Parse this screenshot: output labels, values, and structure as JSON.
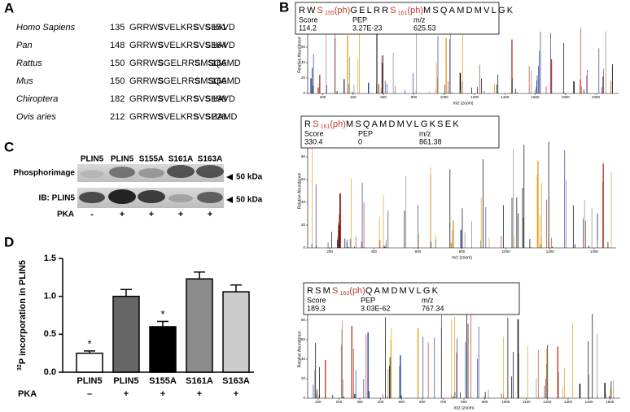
{
  "panel_a": {
    "label": "A",
    "rows": [
      {
        "species": "Homo Sapiens",
        "start": 135,
        "sequence": [
          "GRRW",
          "S",
          "VELKR",
          "S",
          "V",
          "S",
          "HAVD"
        ],
        "end": 151
      },
      {
        "species": "Pan",
        "start": 148,
        "sequence": [
          "GRRW",
          "S",
          "VELKR",
          "S",
          "V",
          "S",
          "HAVD"
        ],
        "end": 164
      },
      {
        "species": "Rattus",
        "start": 150,
        "sequence": [
          "GRRW",
          "S",
          "GELRR",
          "S",
          "M",
          "S",
          "QAMD"
        ],
        "end": 166
      },
      {
        "species": "Mus",
        "start": 150,
        "sequence": [
          "GRRW",
          "S",
          "GELRR",
          "S",
          "M",
          "S",
          "QAMD"
        ],
        "end": 166
      },
      {
        "species": "Chiroptera",
        "start": 182,
        "sequence": [
          "GRRW",
          "S",
          "VELKR",
          "S",
          "V",
          "S",
          "HAVD"
        ],
        "end": 198
      },
      {
        "species": "Ovis aries",
        "start": 212,
        "sequence": [
          "GRRW",
          "S",
          "VELKR",
          "S",
          "V",
          "S",
          "HAMD"
        ],
        "end": 228
      }
    ]
  },
  "panel_b": {
    "label": "B",
    "y_label": "Relative Abundance",
    "x_label": "m/z (zoom)",
    "score_label": "Score",
    "pep_label": "PEP",
    "mz_label": "m/z",
    "spectra": [
      {
        "peptide": [
          {
            "text": "RW"
          },
          {
            "text": "S",
            "sub": "155",
            "mod": "(ph)"
          },
          {
            "text": "GELRR"
          },
          {
            "text": "S",
            "sub": "161",
            "mod": "(ph)"
          },
          {
            "text": "MSQAMDMVLGK"
          }
        ],
        "score": 114.2,
        "pep": "3.27E-23",
        "mz": 625.53,
        "xlim": [
          100,
          2150
        ],
        "xticks": [
          200,
          400,
          600,
          800,
          1000,
          1200,
          1400,
          1600,
          1800,
          2000
        ],
        "ylim": [
          0,
          100
        ],
        "yticks": [
          0,
          20,
          40,
          60,
          80
        ]
      },
      {
        "peptide": [
          {
            "text": "R"
          },
          {
            "text": "S",
            "sub": "161",
            "mod": "(ph)"
          },
          {
            "text": "MSQAMDMVLGKSEK"
          }
        ],
        "score": 330.4,
        "pep": "0",
        "mz": 861.38,
        "xlim": [
          100,
          1500
        ],
        "xticks": [
          200,
          400,
          600,
          800,
          1000,
          1200,
          1400
        ],
        "ylim": [
          0,
          100
        ],
        "yticks": [
          0,
          20,
          40,
          60,
          80
        ]
      },
      {
        "peptide": [
          {
            "text": "RSM"
          },
          {
            "text": "S",
            "sub": "163",
            "mod": "(ph)"
          },
          {
            "text": "QAMDMVLGK"
          }
        ],
        "score": 189.3,
        "pep": "3.03E-62",
        "mz": 767.34,
        "xlim": [
          50,
          1550
        ],
        "xticks": [
          100,
          200,
          300,
          400,
          500,
          600,
          700,
          800,
          900,
          1000,
          1100,
          1200,
          1300,
          1400,
          1500
        ],
        "ylim": [
          0,
          100
        ],
        "yticks": [
          0,
          20,
          40,
          60,
          80
        ]
      }
    ]
  },
  "panel_c": {
    "label": "C",
    "lanes": [
      "PLIN5",
      "PLIN5",
      "S155A",
      "S161A",
      "S163A"
    ],
    "rows": [
      "Phosphorimage",
      "IB: PLIN5"
    ],
    "marker": "50 kDa",
    "pka_label": "PKA",
    "pka": [
      "-",
      "+",
      "+",
      "+",
      "+"
    ]
  },
  "chart_data": {
    "type": "bar",
    "panel_label": "D",
    "y_label": "incorporation in PLIN5",
    "y_label_sup": "32",
    "y_label_p": "P",
    "categories": [
      "PLIN5",
      "PLIN5",
      "S155A",
      "S161A",
      "S163A"
    ],
    "values": [
      0.25,
      1.0,
      0.6,
      1.23,
      1.06
    ],
    "errors": [
      0.03,
      0.09,
      0.07,
      0.09,
      0.09
    ],
    "colors": [
      "#ffffff",
      "#666666",
      "#000000",
      "#8c8c8c",
      "#cccccc"
    ],
    "significance": [
      "*",
      null,
      "*",
      null,
      null
    ],
    "ylim": [
      0,
      1.5
    ],
    "yticks": [
      {
        "value": 0,
        "label": "0.0"
      },
      0.5,
      {
        "value": 1,
        "label": "1.0"
      },
      1.5
    ],
    "pka_label": "PKA",
    "pka": [
      "–",
      "+",
      "+",
      "+",
      "+"
    ]
  }
}
